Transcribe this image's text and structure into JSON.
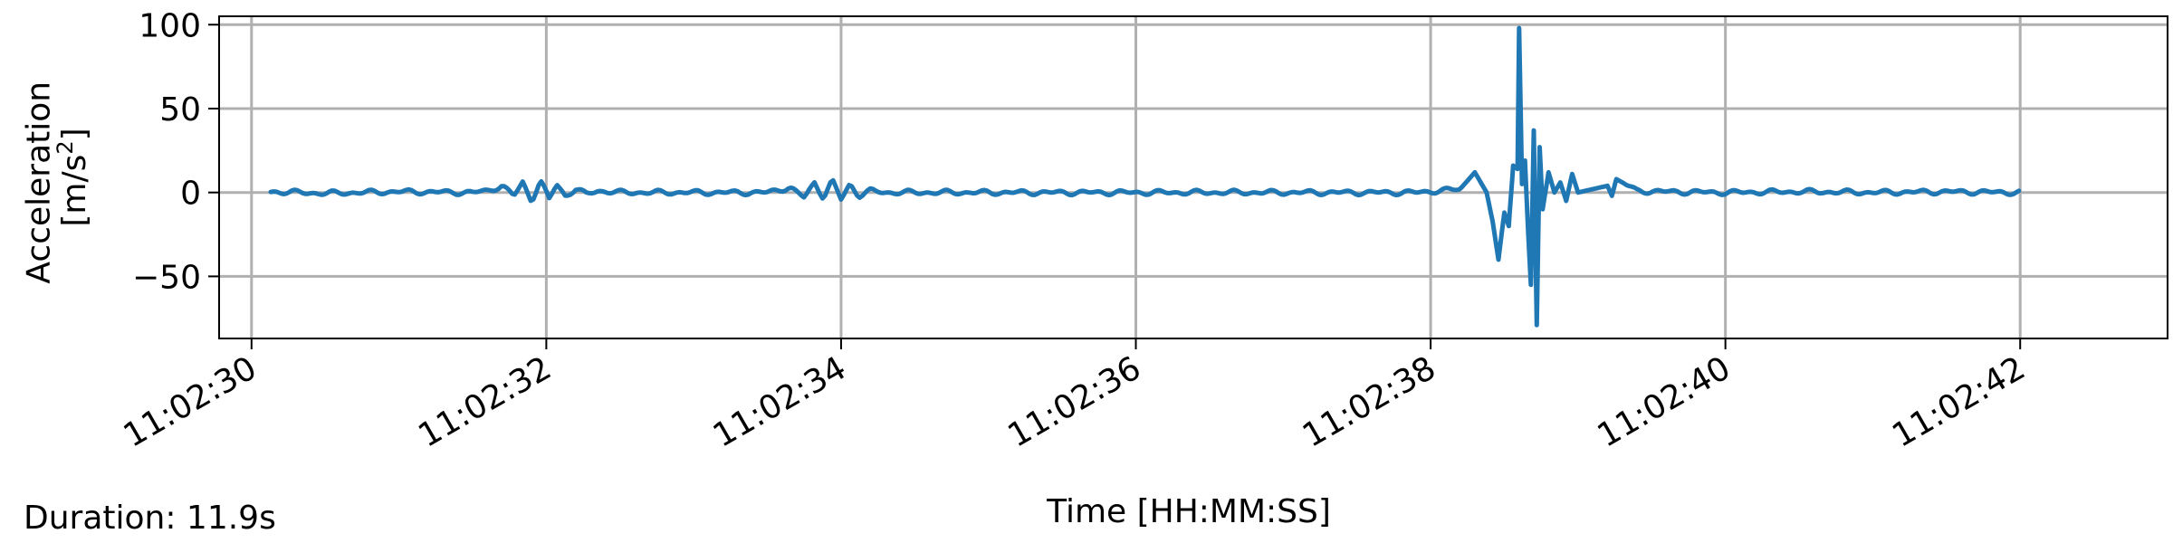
{
  "chart_data": {
    "type": "line",
    "title": "",
    "xlabel": "Time [HH:MM:SS]",
    "ylabel_line1": "Acceleration",
    "ylabel_unit": "[m/s",
    "ylabel_unit_sup": "2",
    "ylabel_unit_end": "]",
    "xlim": [
      -0.22,
      13.0
    ],
    "ylim": [
      -87,
      105
    ],
    "x_unit": "seconds after 11:02:30",
    "x_ticks": [
      0,
      2,
      4,
      6,
      8,
      10,
      12
    ],
    "x_tick_labels": [
      "11:02:30",
      "11:02:32",
      "11:02:34",
      "11:02:36",
      "11:02:38",
      "11:02:40",
      "11:02:42"
    ],
    "y_ticks": [
      100,
      50,
      0,
      -50
    ],
    "y_tick_labels": [
      "100",
      "50",
      "0",
      "−50"
    ],
    "grid": true,
    "line_color": "#1f77b4",
    "grid_color": "#b0b0b0",
    "series": [
      {
        "x": [
          0.13,
          0.5,
          1.0,
          1.5,
          1.6,
          1.7,
          1.78,
          1.84,
          1.9,
          1.96,
          2.02,
          2.07,
          2.13,
          2.2,
          2.27,
          2.35,
          2.5,
          3.0,
          3.5,
          3.65,
          3.75,
          3.82,
          3.88,
          3.94,
          4.0,
          4.06,
          4.12,
          4.2,
          4.3,
          5.0,
          6.0,
          7.0,
          7.9,
          8.2,
          8.3,
          8.38,
          8.42,
          8.46,
          8.5,
          8.53,
          8.56,
          8.59,
          8.6,
          8.62,
          8.64,
          8.66,
          8.68,
          8.7,
          8.72,
          8.74,
          8.76,
          8.8,
          8.84,
          8.88,
          8.92,
          8.96,
          9.0,
          9.1,
          9.2,
          9.23,
          9.26,
          9.4,
          9.6,
          10.0,
          10.5,
          11.0,
          11.5,
          12.0
        ],
        "y": [
          0.5,
          -0.5,
          0.5,
          0,
          1,
          4,
          -2,
          6,
          -5,
          7,
          -4,
          5,
          -2,
          2,
          -1,
          1,
          0,
          0,
          0,
          3,
          -3,
          6,
          -3,
          7,
          -4,
          5,
          -2,
          1,
          0,
          0,
          0,
          0,
          0,
          2,
          12,
          0,
          -17,
          -40,
          -12,
          -20,
          16,
          14,
          98,
          5,
          19,
          -20,
          -55,
          37,
          -79,
          27,
          -10,
          12,
          0,
          6,
          -5,
          11,
          0,
          2,
          4,
          -2,
          8,
          1,
          0.5,
          0,
          0.5,
          0,
          0.5,
          0
        ]
      }
    ]
  },
  "footer": {
    "duration_label": "Duration: 11.9s"
  }
}
